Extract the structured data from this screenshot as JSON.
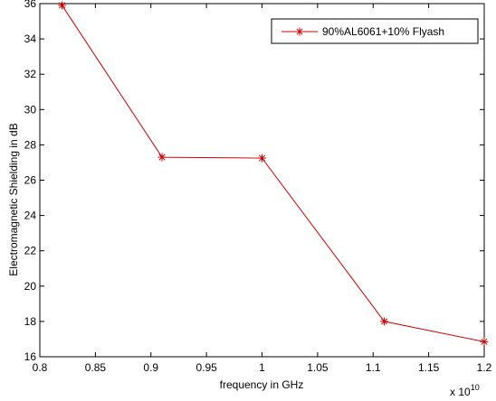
{
  "chart_data": {
    "type": "line",
    "xlabel": "frequency in GHz",
    "ylabel": "Electromagnetic Shielding in dB",
    "x_scale_label": "x 10",
    "x_scale_exponent": "10",
    "xlim": [
      0.8,
      1.2
    ],
    "ylim": [
      16,
      36
    ],
    "xticks": [
      "0.8",
      "0.85",
      "0.9",
      "0.95",
      "1",
      "1.05",
      "1.1",
      "1.15",
      "1.2"
    ],
    "yticks": [
      "16",
      "18",
      "20",
      "22",
      "24",
      "26",
      "28",
      "30",
      "32",
      "34",
      "36"
    ],
    "grid": false,
    "legend_position": "top-right",
    "series": [
      {
        "name": "90%AL6061+10% Flyash",
        "color": "#cc0000",
        "marker": "asterisk",
        "x": [
          0.82,
          0.91,
          1.0,
          1.11,
          1.2
        ],
        "y": [
          35.9,
          27.3,
          27.25,
          18.0,
          16.85
        ]
      }
    ]
  }
}
